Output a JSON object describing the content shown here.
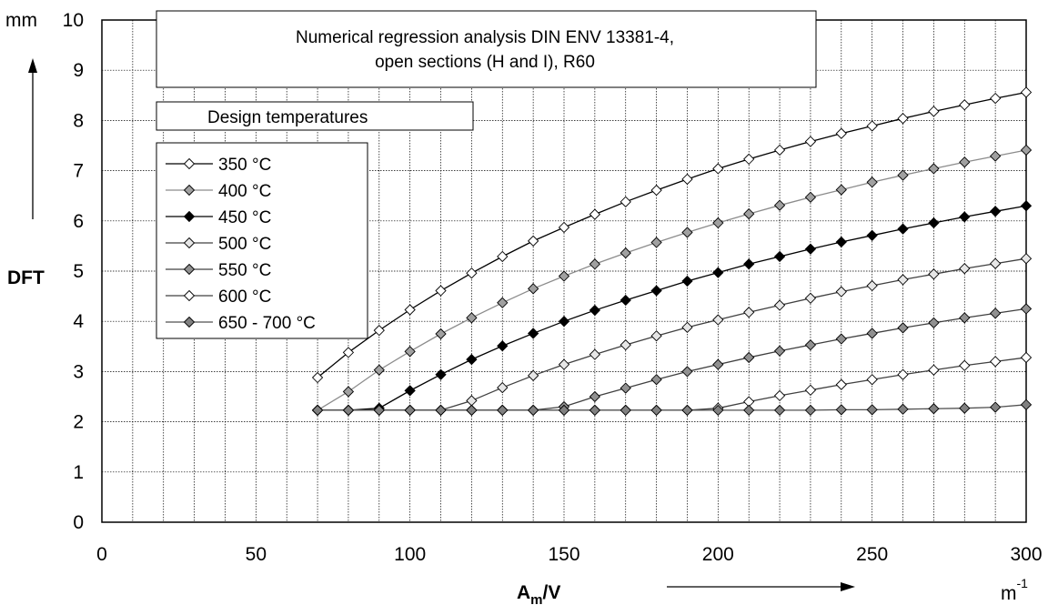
{
  "chart_data": {
    "type": "line",
    "title": [
      "Numerical regression analysis DIN ENV 13381-4,",
      "open sections (H and I), R60"
    ],
    "legend_title": "Design temperatures",
    "legend_position": "left",
    "xlabel": {
      "main": "A",
      "sub": "m",
      "tail": "/V"
    },
    "x_unit": {
      "main": "m",
      "sup": "-1"
    },
    "ylabel": "DFT",
    "y_unit": "mm",
    "xlim": [
      0,
      300
    ],
    "ylim": [
      0,
      10
    ],
    "x_ticks": [
      0,
      50,
      100,
      150,
      200,
      250,
      300
    ],
    "y_ticks": [
      0,
      1,
      2,
      3,
      4,
      5,
      6,
      7,
      8,
      9,
      10
    ],
    "x_tick_labels": [
      "0",
      "50",
      "100",
      "150",
      "200",
      "250",
      "300"
    ],
    "y_tick_labels": [
      "0",
      "1",
      "2",
      "3",
      "4",
      "5",
      "6",
      "7",
      "8",
      "9",
      "10"
    ],
    "grid": true,
    "x": [
      70,
      80,
      90,
      100,
      110,
      120,
      130,
      140,
      150,
      160,
      170,
      180,
      190,
      200,
      210,
      220,
      230,
      240,
      250,
      260,
      270,
      280,
      290,
      300
    ],
    "series": [
      {
        "name": "350 °C",
        "color": "#000000",
        "marker_fill": "#ffffff",
        "values": [
          2.88,
          3.38,
          3.82,
          4.23,
          4.61,
          4.96,
          5.29,
          5.6,
          5.87,
          6.13,
          6.38,
          6.61,
          6.83,
          7.04,
          7.23,
          7.41,
          7.58,
          7.74,
          7.89,
          8.04,
          8.18,
          8.31,
          8.44,
          8.56
        ]
      },
      {
        "name": "400 °C",
        "color": "#8c8c8c",
        "marker_fill": "#a0a0a0",
        "values": [
          2.23,
          2.6,
          3.03,
          3.4,
          3.75,
          4.07,
          4.37,
          4.65,
          4.9,
          5.14,
          5.36,
          5.57,
          5.77,
          5.96,
          6.14,
          6.31,
          6.47,
          6.62,
          6.77,
          6.91,
          7.04,
          7.17,
          7.29,
          7.41
        ]
      },
      {
        "name": "450 °C",
        "color": "#000000",
        "marker_fill": "#000000",
        "values": [
          2.23,
          2.23,
          2.27,
          2.62,
          2.94,
          3.24,
          3.51,
          3.76,
          4.0,
          4.22,
          4.42,
          4.61,
          4.8,
          4.97,
          5.14,
          5.29,
          5.44,
          5.58,
          5.71,
          5.84,
          5.96,
          6.08,
          6.19,
          6.3
        ]
      },
      {
        "name": "500 °C",
        "color": "#404040",
        "marker_fill": "#e6e6e6",
        "values": [
          2.23,
          2.23,
          2.23,
          2.23,
          2.23,
          2.42,
          2.68,
          2.92,
          3.14,
          3.34,
          3.53,
          3.71,
          3.88,
          4.03,
          4.18,
          4.32,
          4.46,
          4.59,
          4.71,
          4.83,
          4.94,
          5.05,
          5.15,
          5.25
        ]
      },
      {
        "name": "550 °C",
        "color": "#404040",
        "marker_fill": "#909090",
        "values": [
          2.23,
          2.23,
          2.23,
          2.23,
          2.23,
          2.23,
          2.23,
          2.23,
          2.3,
          2.5,
          2.67,
          2.84,
          3.0,
          3.14,
          3.28,
          3.41,
          3.53,
          3.65,
          3.76,
          3.87,
          3.97,
          4.07,
          4.16,
          4.25
        ]
      },
      {
        "name": "600 °C",
        "color": "#404040",
        "marker_fill": "#ffffff",
        "values": [
          2.23,
          2.23,
          2.23,
          2.23,
          2.23,
          2.23,
          2.23,
          2.23,
          2.23,
          2.23,
          2.23,
          2.23,
          2.23,
          2.27,
          2.4,
          2.52,
          2.63,
          2.74,
          2.84,
          2.94,
          3.03,
          3.12,
          3.2,
          3.28
        ]
      },
      {
        "name": "650 - 700 °C",
        "color": "#505050",
        "marker_fill": "#808080",
        "values": [
          2.23,
          2.23,
          2.23,
          2.23,
          2.23,
          2.23,
          2.23,
          2.23,
          2.23,
          2.23,
          2.23,
          2.23,
          2.23,
          2.23,
          2.23,
          2.23,
          2.23,
          2.24,
          2.24,
          2.25,
          2.26,
          2.27,
          2.29,
          2.34
        ]
      }
    ]
  }
}
